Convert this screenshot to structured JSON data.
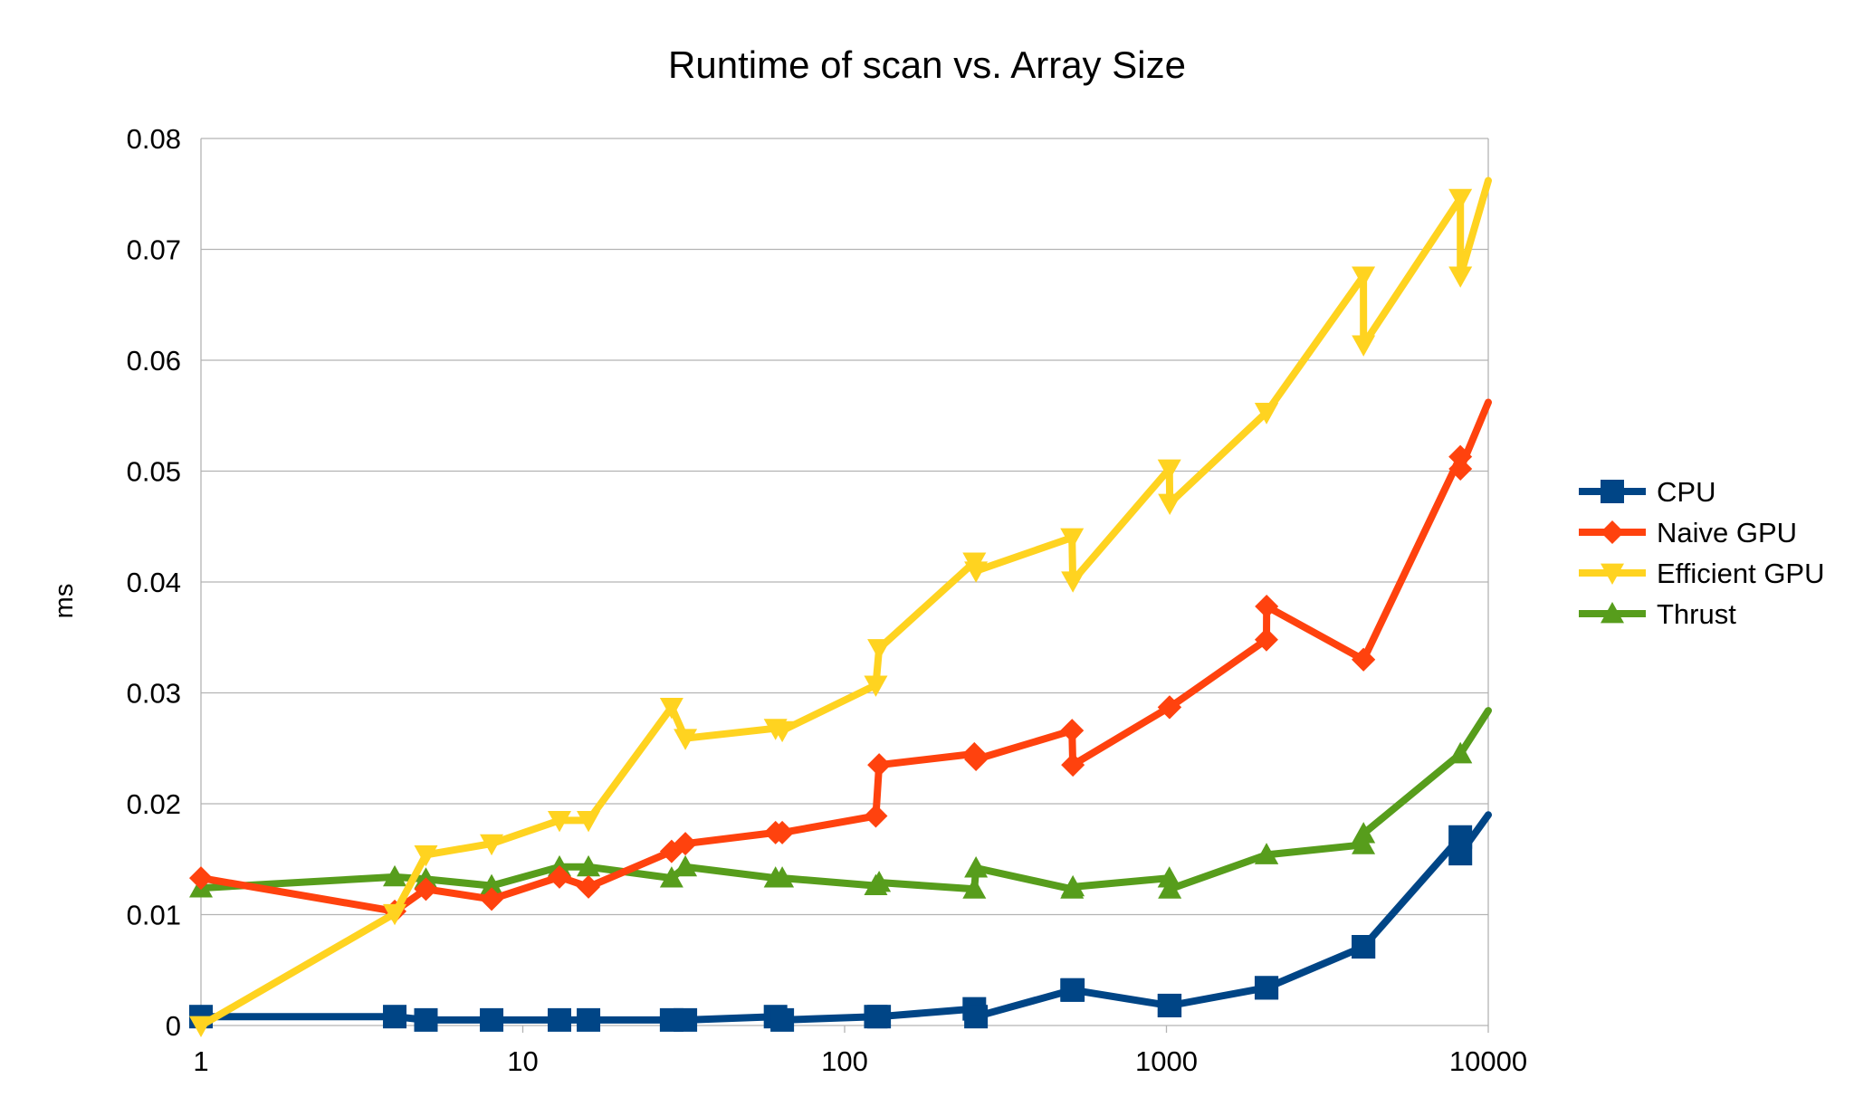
{
  "chart_data": {
    "type": "line",
    "title": "Runtime of scan vs. Array Size",
    "xlabel": "",
    "ylabel": "ms",
    "x_scale": "log",
    "xlim": [
      1,
      10000
    ],
    "ylim": [
      0,
      0.08
    ],
    "x_ticks": [
      "1",
      "10",
      "100",
      "1000",
      "10000"
    ],
    "y_ticks": [
      "0",
      "0.01",
      "0.02",
      "0.03",
      "0.04",
      "0.05",
      "0.06",
      "0.07",
      "0.08"
    ],
    "grid": true,
    "legend_position": "right",
    "series": [
      {
        "name": "CPU",
        "color": "#004586",
        "marker": "square",
        "x": [
          1,
          4,
          5,
          8,
          13,
          16,
          29,
          32,
          61,
          64,
          125,
          128,
          253,
          256,
          509,
          512,
          1021,
          1024,
          2045,
          2048,
          4093,
          4096,
          8189,
          8192,
          10000
        ],
        "y": [
          0.0008,
          0.0008,
          0.0005,
          0.0005,
          0.0005,
          0.0005,
          0.0005,
          0.0005,
          0.0008,
          0.0005,
          0.0008,
          0.0008,
          0.0015,
          0.0008,
          0.0032,
          0.0032,
          0.0018,
          0.0018,
          0.0034,
          0.0034,
          0.0071,
          0.0071,
          0.017,
          0.0155,
          0.019
        ]
      },
      {
        "name": "Naive GPU",
        "color": "#ff420e",
        "marker": "diamond",
        "x": [
          1,
          4,
          5,
          8,
          13,
          16,
          29,
          32,
          61,
          64,
          125,
          128,
          253,
          256,
          509,
          512,
          1021,
          1024,
          2045,
          2048,
          4093,
          4096,
          8189,
          8192,
          10000
        ],
        "y": [
          0.0133,
          0.0103,
          0.0123,
          0.0114,
          0.0134,
          0.0125,
          0.0157,
          0.0164,
          0.0174,
          0.0174,
          0.0189,
          0.0235,
          0.0245,
          0.024,
          0.0266,
          0.0235,
          0.0287,
          0.0287,
          0.0348,
          0.0378,
          0.033,
          0.033,
          0.0513,
          0.0502,
          0.0562
        ]
      },
      {
        "name": "Efficient GPU",
        "color": "#ffd320",
        "marker": "triangle-down",
        "x": [
          1,
          4,
          5,
          8,
          13,
          16,
          29,
          32,
          61,
          64,
          125,
          128,
          253,
          256,
          509,
          512,
          1021,
          1024,
          2045,
          2048,
          4093,
          4096,
          8189,
          8192,
          10000
        ],
        "y": [
          0.0,
          0.0101,
          0.0154,
          0.0164,
          0.0185,
          0.0185,
          0.0287,
          0.0259,
          0.0268,
          0.0266,
          0.0307,
          0.034,
          0.0418,
          0.041,
          0.044,
          0.0401,
          0.0502,
          0.0471,
          0.0553,
          0.0553,
          0.0676,
          0.0614,
          0.0746,
          0.0676,
          0.0762
        ]
      },
      {
        "name": "Thrust",
        "color": "#579d1c",
        "marker": "triangle-up",
        "x": [
          1,
          4,
          5,
          8,
          13,
          16,
          29,
          32,
          61,
          64,
          125,
          128,
          253,
          256,
          509,
          512,
          1021,
          1024,
          2045,
          2048,
          4093,
          4096,
          8189,
          8192,
          10000
        ],
        "y": [
          0.0124,
          0.0134,
          0.0132,
          0.0126,
          0.0143,
          0.0143,
          0.0133,
          0.0143,
          0.0133,
          0.0133,
          0.0126,
          0.0129,
          0.0123,
          0.0142,
          0.0123,
          0.0125,
          0.0133,
          0.0123,
          0.0154,
          0.0154,
          0.0163,
          0.0173,
          0.0245,
          0.0245,
          0.0284
        ]
      }
    ]
  }
}
